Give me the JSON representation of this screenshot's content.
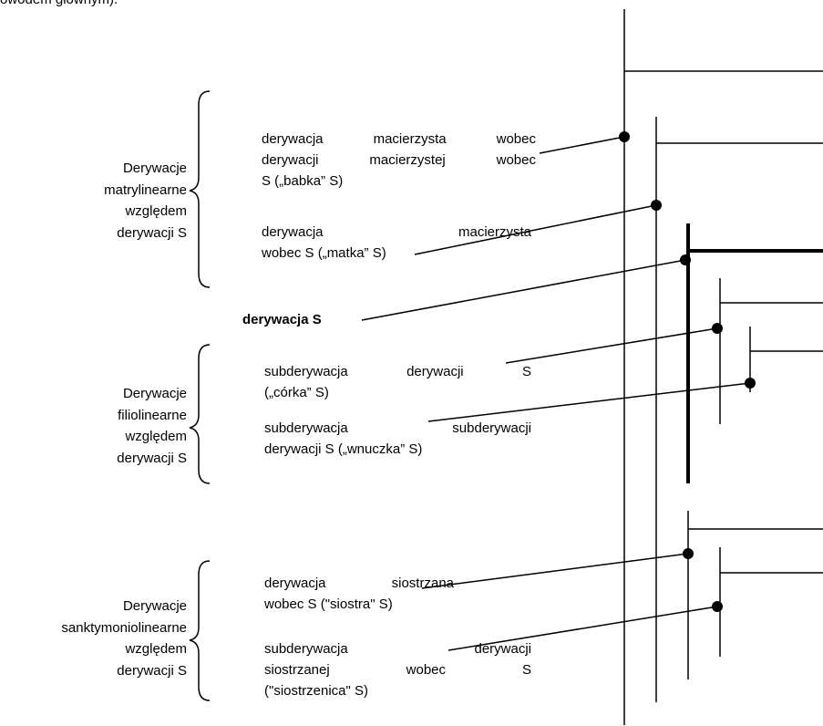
{
  "header": {
    "text": "owodem głównym)."
  },
  "groups": [
    {
      "label": [
        "Derywacje",
        "matrylinearne",
        "względem",
        "derywacji S"
      ],
      "items": [
        {
          "lines": [
            "derywacja macierzysta wobec",
            "derywacji macierzystej wobec",
            "S („babka” S)"
          ]
        },
        {
          "lines": [
            "derywacja macierzysta",
            "wobec S („matka” S)"
          ]
        }
      ]
    },
    {
      "label": [
        "Derywacje",
        "filiolinearne",
        "względem",
        "derywacji S"
      ],
      "items": [
        {
          "lines": [
            "subderywacja derywacji S",
            "(„córka” S)"
          ]
        },
        {
          "lines": [
            "subderywacja subderywacji",
            "derywacji S („wnuczka” S)"
          ]
        }
      ]
    },
    {
      "label": [
        "Derywacje",
        "sanktymoniolinearne",
        "względem",
        "derywacji S"
      ],
      "items": [
        {
          "lines": [
            "derywacja siostrzana",
            "wobec S (\"siostra\" S)"
          ]
        },
        {
          "lines": [
            "subderywacja derywacji",
            "siostrzanej wobec S",
            "(\"siostrzenica\" S)"
          ]
        }
      ]
    }
  ],
  "center": {
    "label": "derywacja S"
  }
}
